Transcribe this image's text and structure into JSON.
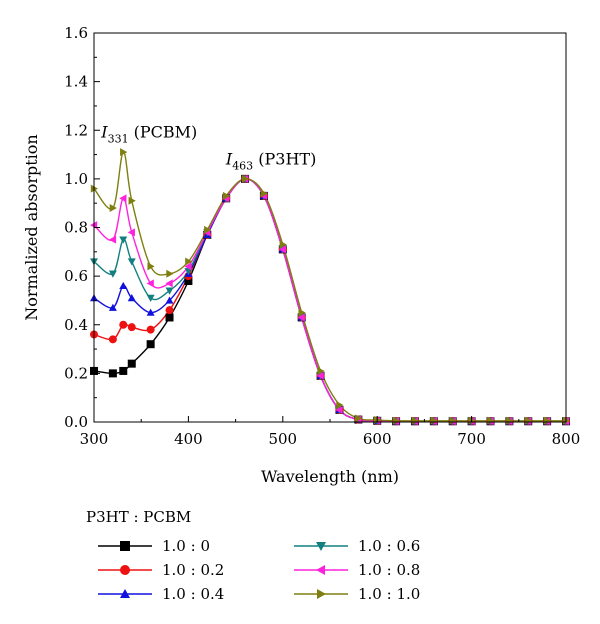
{
  "chart_data": {
    "type": "line",
    "xlabel": "Wavelength (nm)",
    "ylabel": "Normalized absorption",
    "xlim": [
      300,
      800
    ],
    "ylim": [
      0,
      1.6
    ],
    "xticks": [
      300,
      400,
      500,
      600,
      700,
      800
    ],
    "yticks": [
      0.0,
      0.2,
      0.4,
      0.6,
      0.8,
      1.0,
      1.2,
      1.4,
      1.6
    ],
    "xtick_labels": [
      "300",
      "400",
      "500",
      "600",
      "700",
      "800"
    ],
    "ytick_labels": [
      "0.0",
      "0.2",
      "0.4",
      "0.6",
      "0.8",
      "1.0",
      "1.2",
      "1.4",
      "1.6"
    ],
    "grid": false,
    "legend_title": "P3HT : PCBM",
    "legend_placement": "below",
    "annotations": [
      {
        "italic": "I",
        "sub": "331",
        "rest": " (PCBM)",
        "x": 331,
        "y": 1.19
      },
      {
        "italic": "I",
        "sub": "463",
        "rest": " (P3HT)",
        "x": 463,
        "y": 1.08
      }
    ],
    "x": [
      300,
      320,
      331,
      340,
      360,
      380,
      400,
      420,
      440,
      460,
      480,
      500,
      520,
      540,
      560,
      580,
      600,
      620,
      640,
      660,
      680,
      700,
      720,
      740,
      760,
      780,
      800
    ],
    "series": [
      {
        "name": "1.0 : 0",
        "color": "#000000",
        "marker": "square",
        "values": [
          0.21,
          0.2,
          0.21,
          0.24,
          0.32,
          0.43,
          0.58,
          0.77,
          0.92,
          1.0,
          0.93,
          0.71,
          0.43,
          0.19,
          0.05,
          0.01,
          0.005,
          0.003,
          0.003,
          0.003,
          0.003,
          0.003,
          0.003,
          0.003,
          0.003,
          0.003,
          0.003
        ]
      },
      {
        "name": "1.0 : 0.2",
        "color": "#ee1111",
        "marker": "circle",
        "values": [
          0.36,
          0.34,
          0.4,
          0.39,
          0.38,
          0.46,
          0.6,
          0.77,
          0.92,
          1.0,
          0.93,
          0.71,
          0.43,
          0.19,
          0.05,
          0.01,
          0.005,
          0.003,
          0.003,
          0.003,
          0.003,
          0.003,
          0.003,
          0.003,
          0.003,
          0.003,
          0.003
        ]
      },
      {
        "name": "1.0 : 0.4",
        "color": "#1111dd",
        "marker": "triangle-up",
        "values": [
          0.51,
          0.47,
          0.56,
          0.51,
          0.45,
          0.5,
          0.61,
          0.77,
          0.92,
          1.0,
          0.93,
          0.71,
          0.43,
          0.19,
          0.05,
          0.01,
          0.005,
          0.003,
          0.003,
          0.003,
          0.003,
          0.003,
          0.003,
          0.003,
          0.003,
          0.003,
          0.003
        ]
      },
      {
        "name": "1.0 : 0.6",
        "color": "#128080",
        "marker": "triangle-down",
        "values": [
          0.66,
          0.61,
          0.75,
          0.66,
          0.51,
          0.54,
          0.62,
          0.78,
          0.92,
          1.0,
          0.93,
          0.71,
          0.43,
          0.19,
          0.05,
          0.01,
          0.005,
          0.003,
          0.003,
          0.003,
          0.003,
          0.003,
          0.003,
          0.003,
          0.003,
          0.003,
          0.003
        ]
      },
      {
        "name": "1.0 : 0.8",
        "color": "#ff22dd",
        "marker": "triangle-left",
        "values": [
          0.81,
          0.75,
          0.92,
          0.78,
          0.57,
          0.57,
          0.64,
          0.78,
          0.92,
          1.0,
          0.93,
          0.71,
          0.43,
          0.19,
          0.05,
          0.01,
          0.005,
          0.003,
          0.003,
          0.003,
          0.003,
          0.003,
          0.003,
          0.003,
          0.003,
          0.003,
          0.003
        ]
      },
      {
        "name": "1.0 : 1.0",
        "color": "#7f7f11",
        "marker": "triangle-right",
        "values": [
          0.96,
          0.88,
          1.11,
          0.91,
          0.64,
          0.61,
          0.66,
          0.79,
          0.93,
          1.0,
          0.94,
          0.73,
          0.45,
          0.21,
          0.07,
          0.015,
          0.008,
          0.005,
          0.005,
          0.005,
          0.005,
          0.005,
          0.005,
          0.005,
          0.005,
          0.005,
          0.005
        ]
      }
    ]
  }
}
